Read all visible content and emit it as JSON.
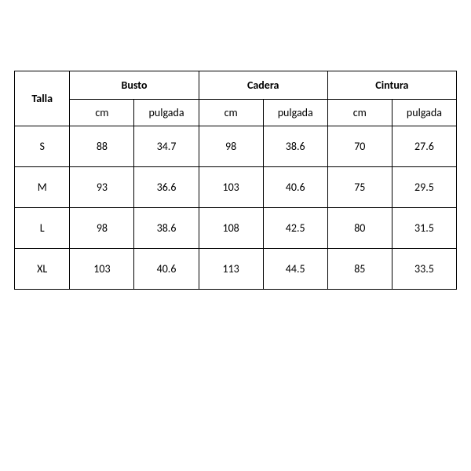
{
  "table": {
    "type": "table",
    "border_color": "#000000",
    "background_color": "#ffffff",
    "text_color": "#000000",
    "font_family": "Calibri",
    "header_fontsize": 14,
    "cell_fontsize": 14,
    "header_row1_height": 36,
    "header_row2_height": 34,
    "data_row_height": 52,
    "col_widths_percent": [
      12.5,
      14.58,
      14.58,
      14.58,
      14.58,
      14.58,
      14.58
    ],
    "size_header": "Talla",
    "groups": [
      {
        "label": "Busto",
        "sub": [
          "cm",
          "pulgada"
        ]
      },
      {
        "label": "Cadera",
        "sub": [
          "cm",
          "pulgada"
        ]
      },
      {
        "label": "Cintura",
        "sub": [
          "cm",
          "pulgada"
        ]
      }
    ],
    "rows": [
      {
        "size": "S",
        "cells": [
          "88",
          "34.7",
          "98",
          "38.6",
          "70",
          "27.6"
        ]
      },
      {
        "size": "M",
        "cells": [
          "93",
          "36.6",
          "103",
          "40.6",
          "75",
          "29.5"
        ]
      },
      {
        "size": "L",
        "cells": [
          "98",
          "38.6",
          "108",
          "42.5",
          "80",
          "31.5"
        ]
      },
      {
        "size": "XL",
        "cells": [
          "103",
          "40.6",
          "113",
          "44.5",
          "85",
          "33.5"
        ]
      }
    ]
  }
}
